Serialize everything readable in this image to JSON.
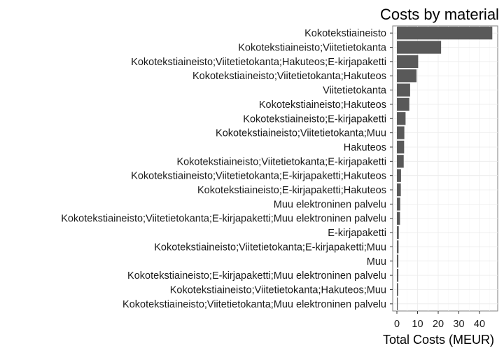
{
  "chart_data": {
    "type": "bar",
    "orientation": "horizontal",
    "title": "Costs by material",
    "xlabel": "Total Costs (MEUR)",
    "ylabel": "",
    "xlim": [
      0,
      47.5
    ],
    "xticks": [
      0,
      10,
      20,
      30,
      40
    ],
    "grid": true,
    "legend": "none",
    "bar_color": "#595959",
    "categories": [
      "Kokotekstiaineisto",
      "Kokotekstiaineisto;Viitetietokanta",
      "Kokotekstiaineisto;Viitetietokanta;Hakuteos;E-kirjapaketti",
      "Kokotekstiaineisto;Viitetietokanta;Hakuteos",
      "Viitetietokanta",
      "Kokotekstiaineisto;Hakuteos",
      "Kokotekstiaineisto;E-kirjapaketti",
      "Kokotekstiaineisto;Viitetietokanta;Muu",
      "Hakuteos",
      "Kokotekstiaineisto;Viitetietokanta;E-kirjapaketti",
      "Kokotekstiaineisto;Viitetietokanta;E-kirjapaketti;Hakuteos",
      "Kokotekstiaineisto;E-kirjapaketti;Hakuteos",
      "Muu elektroninen palvelu",
      "Kokotekstiaineisto;Viitetietokanta;E-kirjapaketti;Muu elektroninen palvelu",
      "E-kirjapaketti",
      "Kokotekstiaineisto;Viitetietokanta;E-kirjapaketti;Muu",
      "Muu",
      "Kokotekstiaineisto;E-kirjapaketti;Muu elektroninen palvelu",
      "Kokotekstiaineisto;Viitetietokanta;Hakuteos;Muu",
      "Kokotekstiaineisto;Viitetietokanta;Muu elektroninen palvelu"
    ],
    "values": [
      46.2,
      21.4,
      10.3,
      9.5,
      6.4,
      6.0,
      4.2,
      3.6,
      3.5,
      3.3,
      2.0,
      1.9,
      1.6,
      1.5,
      0.9,
      0.8,
      0.7,
      0.7,
      0.6,
      0.4
    ]
  }
}
